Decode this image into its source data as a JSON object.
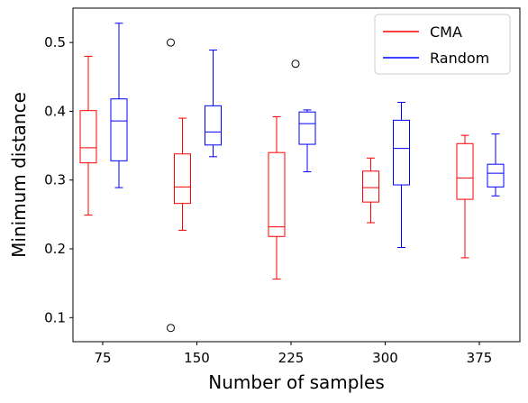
{
  "chart_data": {
    "type": "boxplot",
    "xlabel": "Number of samples",
    "ylabel": "Minimum distance",
    "categories": [
      "75",
      "150",
      "225",
      "300",
      "375"
    ],
    "ylim": [
      0.065,
      0.55
    ],
    "yticks": [
      0.1,
      0.2,
      0.3,
      0.4,
      0.5
    ],
    "ytick_labels": [
      "0.1",
      "0.2",
      "0.3",
      "0.4",
      "0.5"
    ],
    "grid": false,
    "legend": {
      "placement": "top-right"
    },
    "series": [
      {
        "name": "CMA",
        "color": "#ff0000",
        "boxes": [
          {
            "whislo": 0.249,
            "q1": 0.325,
            "med": 0.347,
            "q3": 0.401,
            "whishi": 0.48,
            "fliers": []
          },
          {
            "whislo": 0.227,
            "q1": 0.266,
            "med": 0.29,
            "q3": 0.338,
            "whishi": 0.39,
            "fliers": [
              0.5,
              0.085
            ]
          },
          {
            "whislo": 0.156,
            "q1": 0.218,
            "med": 0.232,
            "q3": 0.34,
            "whishi": 0.392,
            "fliers": []
          },
          {
            "whislo": 0.238,
            "q1": 0.268,
            "med": 0.289,
            "q3": 0.313,
            "whishi": 0.332,
            "fliers": []
          },
          {
            "whislo": 0.187,
            "q1": 0.272,
            "med": 0.303,
            "q3": 0.353,
            "whishi": 0.365,
            "fliers": []
          }
        ]
      },
      {
        "name": "Random",
        "color": "#0000ff",
        "boxes": [
          {
            "whislo": 0.289,
            "q1": 0.328,
            "med": 0.386,
            "q3": 0.418,
            "whishi": 0.528,
            "fliers": []
          },
          {
            "whislo": 0.334,
            "q1": 0.351,
            "med": 0.37,
            "q3": 0.408,
            "whishi": 0.489,
            "fliers": []
          },
          {
            "whislo": 0.312,
            "q1": 0.352,
            "med": 0.382,
            "q3": 0.399,
            "whishi": 0.402,
            "fliers": [
              0.469
            ]
          },
          {
            "whislo": 0.202,
            "q1": 0.293,
            "med": 0.346,
            "q3": 0.387,
            "whishi": 0.413,
            "fliers": []
          },
          {
            "whislo": 0.277,
            "q1": 0.29,
            "med": 0.31,
            "q3": 0.323,
            "whishi": 0.367,
            "fliers": []
          }
        ]
      }
    ]
  }
}
